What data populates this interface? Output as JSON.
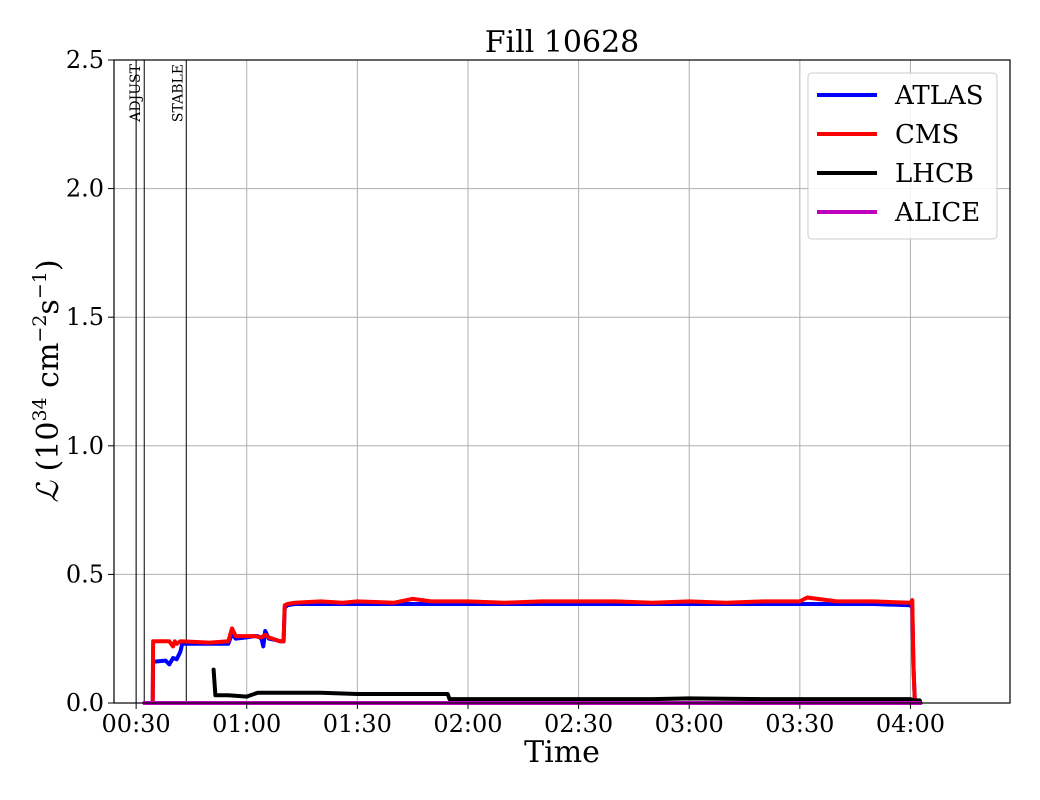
{
  "chart_data": {
    "type": "line",
    "title": "Fill 10628",
    "xlabel": "Time",
    "ylabel_parts": {
      "symbol": "ℒ",
      "open": " (10",
      "exp1": "34",
      "mid": " cm",
      "exp2": "−2",
      "mid2": "s",
      "exp3": "−1",
      "close": ")"
    },
    "x_unit": "minutes",
    "xlim": [
      24,
      267
    ],
    "ylim": [
      0,
      2.5
    ],
    "xticks": [
      {
        "value": 30,
        "label": "00:30"
      },
      {
        "value": 60,
        "label": "01:00"
      },
      {
        "value": 90,
        "label": "01:30"
      },
      {
        "value": 120,
        "label": "02:00"
      },
      {
        "value": 150,
        "label": "02:30"
      },
      {
        "value": 180,
        "label": "03:00"
      },
      {
        "value": 210,
        "label": "03:30"
      },
      {
        "value": 240,
        "label": "04:00"
      }
    ],
    "yticks": [
      {
        "value": 0,
        "label": "0.0"
      },
      {
        "value": 0.5,
        "label": "0.5"
      },
      {
        "value": 1.0,
        "label": "1.0"
      },
      {
        "value": 1.5,
        "label": "1.5"
      },
      {
        "value": 2.0,
        "label": "2.0"
      },
      {
        "value": 2.5,
        "label": "2.5"
      }
    ],
    "grid": true,
    "legend_position": "top-right",
    "phase_markers": [
      {
        "value": 30.0,
        "label": ""
      },
      {
        "value": 32.2,
        "label": "ADJUST"
      },
      {
        "value": 43.6,
        "label": "STABLE"
      }
    ],
    "series": [
      {
        "name": "ATLAS",
        "color": "#0000ff",
        "points": [
          [
            34.5,
            0
          ],
          [
            34.6,
            0.16
          ],
          [
            38,
            0.165
          ],
          [
            39,
            0.15
          ],
          [
            40,
            0.175
          ],
          [
            41,
            0.17
          ],
          [
            42,
            0.2
          ],
          [
            42.5,
            0.23
          ],
          [
            50,
            0.23
          ],
          [
            55,
            0.23
          ],
          [
            56,
            0.27
          ],
          [
            57,
            0.25
          ],
          [
            60,
            0.255
          ],
          [
            62,
            0.26
          ],
          [
            63,
            0.26
          ],
          [
            64,
            0.25
          ],
          [
            64.5,
            0.22
          ],
          [
            65,
            0.28
          ],
          [
            66,
            0.25
          ],
          [
            68,
            0.245
          ],
          [
            69,
            0.24
          ],
          [
            70,
            0.24
          ],
          [
            70.3,
            0.37
          ],
          [
            71,
            0.38
          ],
          [
            73,
            0.385
          ],
          [
            80,
            0.385
          ],
          [
            90,
            0.385
          ],
          [
            100,
            0.385
          ],
          [
            110,
            0.385
          ],
          [
            120,
            0.385
          ],
          [
            130,
            0.385
          ],
          [
            140,
            0.385
          ],
          [
            150,
            0.385
          ],
          [
            160,
            0.385
          ],
          [
            170,
            0.385
          ],
          [
            180,
            0.385
          ],
          [
            190,
            0.385
          ],
          [
            200,
            0.385
          ],
          [
            210,
            0.385
          ],
          [
            220,
            0.385
          ],
          [
            230,
            0.385
          ],
          [
            240,
            0.38
          ],
          [
            240.5,
            0.37
          ],
          [
            240.8,
            0.15
          ],
          [
            241.2,
            0
          ]
        ]
      },
      {
        "name": "CMS",
        "color": "#ff0000",
        "points": [
          [
            34.5,
            0
          ],
          [
            34.6,
            0.24
          ],
          [
            38,
            0.24
          ],
          [
            39,
            0.24
          ],
          [
            40,
            0.22
          ],
          [
            40.5,
            0.24
          ],
          [
            41,
            0.23
          ],
          [
            42,
            0.24
          ],
          [
            50,
            0.235
          ],
          [
            55,
            0.24
          ],
          [
            56,
            0.29
          ],
          [
            57,
            0.26
          ],
          [
            60,
            0.26
          ],
          [
            62,
            0.26
          ],
          [
            64,
            0.255
          ],
          [
            65,
            0.265
          ],
          [
            66,
            0.255
          ],
          [
            68,
            0.245
          ],
          [
            69,
            0.24
          ],
          [
            70,
            0.24
          ],
          [
            70.3,
            0.38
          ],
          [
            71,
            0.385
          ],
          [
            73,
            0.39
          ],
          [
            80,
            0.395
          ],
          [
            86,
            0.39
          ],
          [
            90,
            0.395
          ],
          [
            100,
            0.39
          ],
          [
            105,
            0.405
          ],
          [
            110,
            0.395
          ],
          [
            120,
            0.395
          ],
          [
            130,
            0.39
          ],
          [
            140,
            0.395
          ],
          [
            150,
            0.395
          ],
          [
            160,
            0.395
          ],
          [
            170,
            0.39
          ],
          [
            180,
            0.395
          ],
          [
            190,
            0.39
          ],
          [
            200,
            0.395
          ],
          [
            210,
            0.395
          ],
          [
            212,
            0.41
          ],
          [
            220,
            0.395
          ],
          [
            230,
            0.395
          ],
          [
            240,
            0.39
          ],
          [
            240.5,
            0.4
          ],
          [
            240.8,
            0.14
          ],
          [
            241.2,
            0
          ]
        ]
      },
      {
        "name": "LHCB",
        "color": "#000000",
        "points": [
          [
            51,
            0.13
          ],
          [
            51.5,
            0.03
          ],
          [
            55,
            0.03
          ],
          [
            60,
            0.025
          ],
          [
            63,
            0.04
          ],
          [
            70,
            0.04
          ],
          [
            80,
            0.04
          ],
          [
            90,
            0.035
          ],
          [
            100,
            0.035
          ],
          [
            110,
            0.035
          ],
          [
            114.5,
            0.035
          ],
          [
            115,
            0.015
          ],
          [
            120,
            0.015
          ],
          [
            140,
            0.015
          ],
          [
            160,
            0.015
          ],
          [
            170,
            0.015
          ],
          [
            180,
            0.018
          ],
          [
            200,
            0.015
          ],
          [
            220,
            0.015
          ],
          [
            240,
            0.015
          ],
          [
            240.8,
            0.01
          ],
          [
            242.5,
            0.01
          ],
          [
            242.7,
            0
          ]
        ]
      },
      {
        "name": "ALICE",
        "color": "#bf00bf",
        "points": [
          [
            32.2,
            0
          ],
          [
            242.5,
            0
          ]
        ]
      }
    ]
  }
}
